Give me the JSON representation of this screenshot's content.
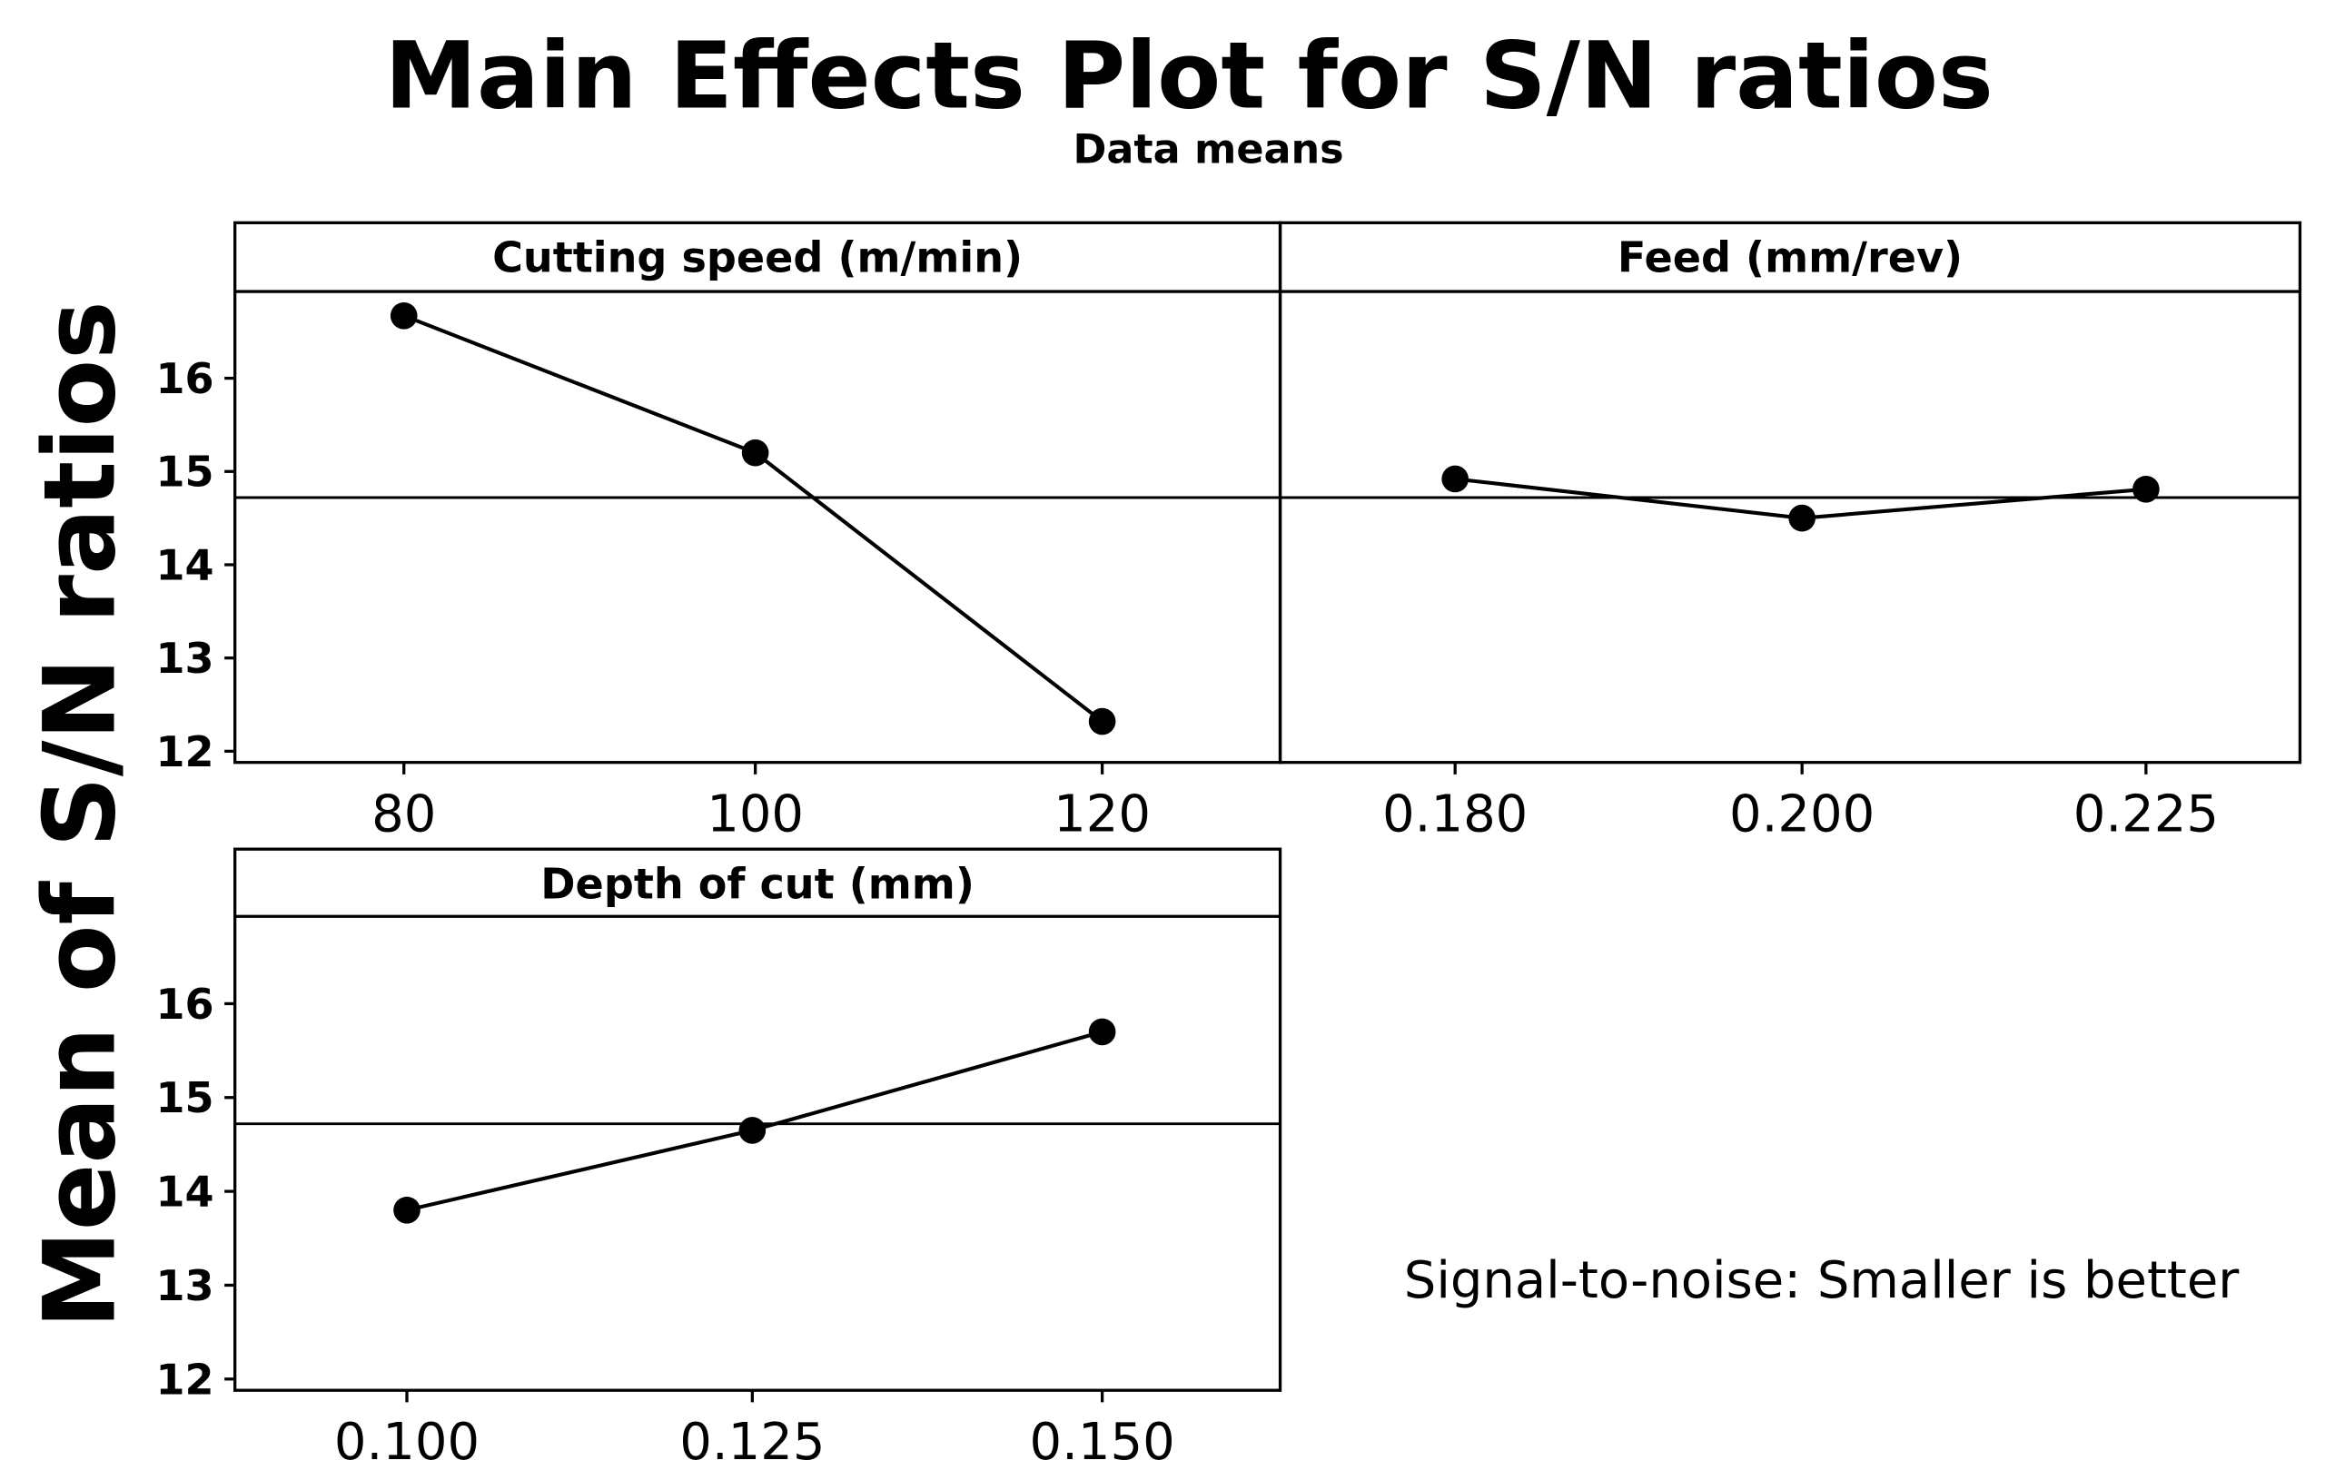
{
  "chart_data": {
    "type": "line",
    "title": "Main Effects Plot for S/N ratios",
    "subtitle": "Data means",
    "ylabel": "Mean of S/N ratios",
    "ylim": [
      11.88,
      16.93
    ],
    "yticks": [
      12,
      13,
      14,
      15,
      16
    ],
    "mean_line": 14.72,
    "note": "Signal-to-noise: Smaller is better",
    "panels": [
      {
        "title": "Cutting speed (m/min)",
        "categories": [
          "80",
          "100",
          "120"
        ],
        "values": [
          16.67,
          15.2,
          12.32
        ]
      },
      {
        "title": "Feed (mm/rev)",
        "categories": [
          "0.180",
          "0.200",
          "0.225"
        ],
        "values": [
          14.92,
          14.5,
          14.81
        ]
      },
      {
        "title": "Depth of cut (mm)",
        "categories": [
          "0.100",
          "0.125",
          "0.150"
        ],
        "values": [
          13.8,
          14.65,
          15.7
        ]
      }
    ]
  }
}
